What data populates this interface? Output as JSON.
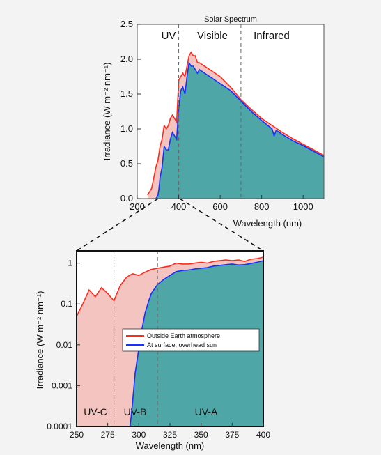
{
  "chart_data": [
    {
      "type": "area",
      "title": "Solar Spectrum",
      "xlabel": "Wavelength (nm)",
      "ylabel": "Irradiance (W m⁻² nm⁻¹)",
      "xlim": [
        200,
        1100
      ],
      "ylim": [
        0,
        2.5
      ],
      "xticks": [
        "200",
        "400",
        "600",
        "800",
        "1000"
      ],
      "yticks": [
        "0.0",
        "0.5",
        "1.0",
        "1.5",
        "2.0",
        "2.5"
      ],
      "regions": [
        {
          "label": "UV",
          "x_start": 200,
          "x_end": 400
        },
        {
          "label": "Visible",
          "x_start": 400,
          "x_end": 700
        },
        {
          "label": "Infrared",
          "x_start": 700,
          "x_end": 1100
        }
      ],
      "dividers_x": [
        400,
        700
      ],
      "series": [
        {
          "name": "Outside Earth atmosphere",
          "color": "#ff2a1a",
          "x": [
            250,
            270,
            290,
            300,
            310,
            320,
            330,
            340,
            350,
            360,
            370,
            380,
            390,
            400,
            410,
            420,
            430,
            440,
            450,
            460,
            470,
            480,
            490,
            500,
            525,
            550,
            575,
            600,
            650,
            700,
            750,
            800,
            850,
            900,
            950,
            1000,
            1050,
            1100
          ],
          "y": [
            0.05,
            0.15,
            0.45,
            0.55,
            0.75,
            0.85,
            1.05,
            1.0,
            1.05,
            1.15,
            1.2,
            1.15,
            1.1,
            1.7,
            1.75,
            1.8,
            1.75,
            1.9,
            2.05,
            2.1,
            2.05,
            2.05,
            1.95,
            1.95,
            1.9,
            1.85,
            1.8,
            1.75,
            1.6,
            1.42,
            1.28,
            1.15,
            1.05,
            0.95,
            0.86,
            0.78,
            0.7,
            0.62
          ]
        },
        {
          "name": "At surface, overhead sun",
          "color": "#1530ff",
          "x": [
            290,
            295,
            300,
            305,
            310,
            320,
            330,
            340,
            350,
            360,
            370,
            380,
            390,
            400,
            410,
            420,
            430,
            440,
            450,
            460,
            470,
            480,
            490,
            500,
            525,
            550,
            575,
            600,
            650,
            700,
            750,
            800,
            850,
            860,
            870,
            900,
            950,
            1000,
            1050,
            1100
          ],
          "y": [
            0,
            0.02,
            0.05,
            0.15,
            0.3,
            0.45,
            0.75,
            0.7,
            0.7,
            0.85,
            0.95,
            0.9,
            0.85,
            1.3,
            1.55,
            1.6,
            1.5,
            1.75,
            1.95,
            1.9,
            1.9,
            1.85,
            1.8,
            1.85,
            1.8,
            1.75,
            1.7,
            1.65,
            1.55,
            1.4,
            1.25,
            1.12,
            1.0,
            0.9,
            0.98,
            0.92,
            0.83,
            0.76,
            0.68,
            0.6
          ]
        }
      ]
    },
    {
      "type": "area",
      "title": "",
      "xlabel": "Wavelength (nm)",
      "ylabel": "Irradiance (W m⁻² nm⁻¹)",
      "yscale": "log",
      "xlim": [
        250,
        400
      ],
      "ylim": [
        0.0001,
        2
      ],
      "xticks": [
        "250",
        "275",
        "300",
        "325",
        "350",
        "375",
        "400"
      ],
      "yticks": [
        "0.0001",
        "0.001",
        "0.01",
        "0.1",
        "1"
      ],
      "regions": [
        {
          "label": "UV-C",
          "x_start": 250,
          "x_end": 280
        },
        {
          "label": "UV-B",
          "x_start": 280,
          "x_end": 315
        },
        {
          "label": "UV-A",
          "x_start": 315,
          "x_end": 400
        }
      ],
      "dividers_x": [
        280,
        315
      ],
      "legend": {
        "position": "center",
        "entries": [
          "Outside Earth atmosphere",
          "At surface, overhead sun"
        ]
      },
      "series": [
        {
          "name": "Outside Earth atmosphere",
          "color": "#ff2a1a",
          "x": [
            250,
            255,
            260,
            265,
            270,
            275,
            280,
            285,
            290,
            295,
            300,
            305,
            310,
            315,
            320,
            325,
            330,
            335,
            340,
            345,
            350,
            355,
            360,
            365,
            370,
            375,
            380,
            385,
            390,
            395,
            400
          ],
          "y": [
            0.05,
            0.1,
            0.22,
            0.15,
            0.25,
            0.18,
            0.12,
            0.28,
            0.45,
            0.55,
            0.5,
            0.6,
            0.7,
            0.75,
            0.8,
            0.85,
            1.0,
            0.95,
            0.95,
            1.0,
            1.05,
            1.0,
            1.1,
            1.15,
            1.2,
            1.15,
            1.2,
            1.1,
            1.25,
            1.3,
            1.4
          ]
        },
        {
          "name": "At surface, overhead sun",
          "color": "#1530ff",
          "x": [
            293,
            295,
            297,
            300,
            302,
            305,
            308,
            310,
            315,
            320,
            325,
            330,
            335,
            340,
            345,
            350,
            355,
            360,
            365,
            370,
            375,
            380,
            385,
            390,
            395,
            400
          ],
          "y": [
            0.0001,
            0.0004,
            0.002,
            0.008,
            0.02,
            0.06,
            0.12,
            0.18,
            0.3,
            0.4,
            0.5,
            0.62,
            0.66,
            0.68,
            0.72,
            0.75,
            0.78,
            0.85,
            0.88,
            0.92,
            0.95,
            0.9,
            0.92,
            0.98,
            1.05,
            1.15
          ]
        }
      ]
    }
  ]
}
